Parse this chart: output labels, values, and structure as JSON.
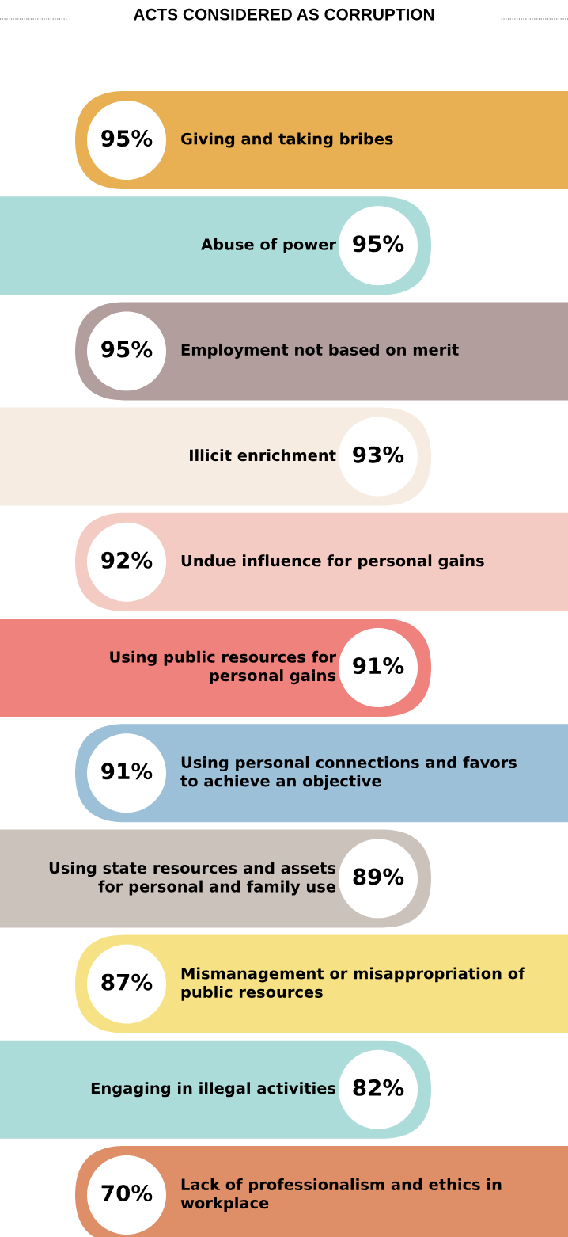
{
  "chart_data": {
    "type": "other",
    "title": "ACTS CONSIDERED AS CORRUPTION",
    "categories": [
      "Giving and taking bribes",
      "Abuse of power",
      "Employment not based on merit",
      "Illicit enrichment",
      "Undue influence for personal gains",
      "Using public resources for personal gains",
      "Using personal connections and favors to achieve an objective",
      "Using state resources and assets for personal and family use",
      "Mismanagement or misappropriation of public resources",
      "Engaging in illegal activities",
      "Lack of professionalism and ethics in workplace"
    ],
    "values": [
      95,
      95,
      95,
      93,
      92,
      91,
      91,
      89,
      87,
      82,
      70
    ],
    "value_labels": [
      "95%",
      "95%",
      "95%",
      "93%",
      "92%",
      "91%",
      "91%",
      "89%",
      "87%",
      "82%",
      "70%"
    ],
    "colors": [
      "#e8b053",
      "#acdcd9",
      "#b19e9d",
      "#f6ece2",
      "#f4cbc2",
      "#ef827c",
      "#9dc0d9",
      "#cbc2bb",
      "#f6e285",
      "#acdcd9",
      "#df8f68"
    ]
  }
}
